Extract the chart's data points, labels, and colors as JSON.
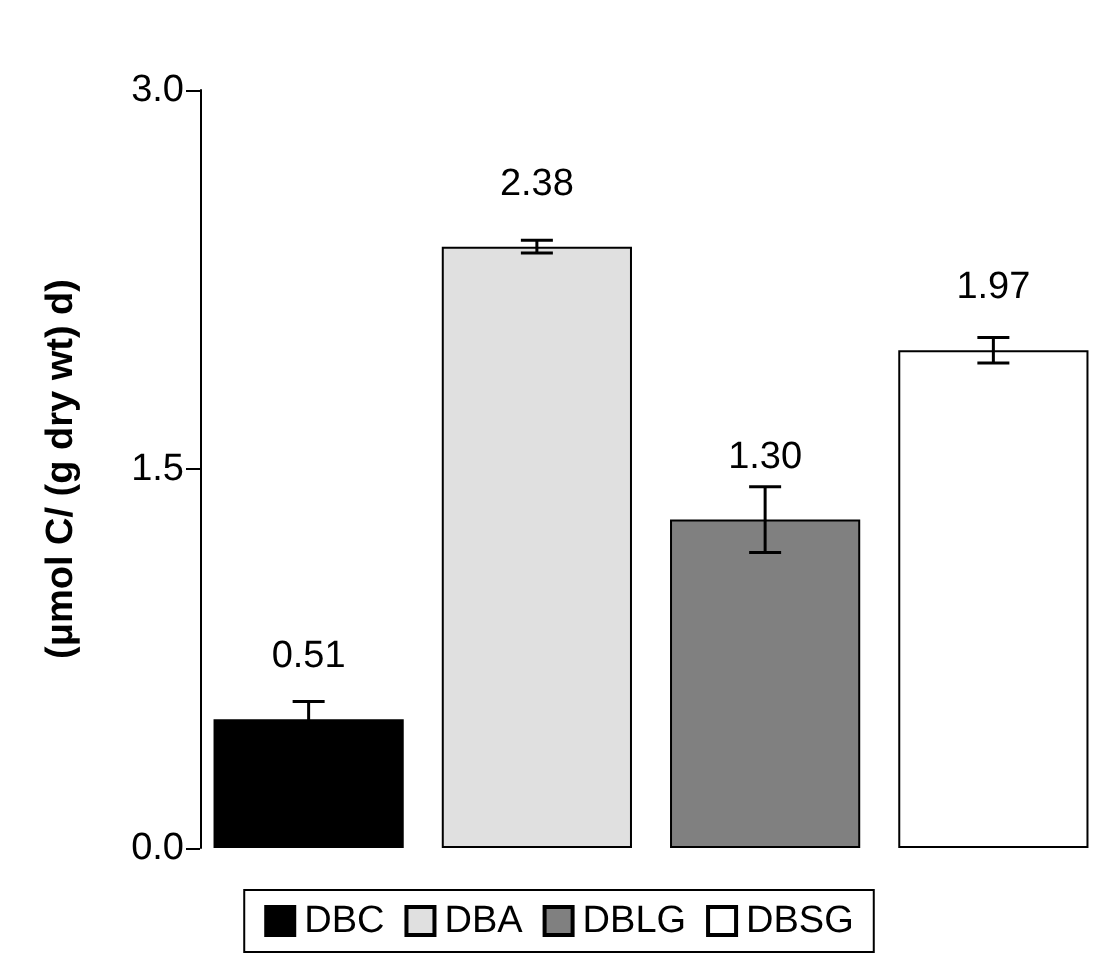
{
  "chart_data": {
    "type": "bar",
    "ylabel": "(μmol C/ (g dry wt) d)",
    "categories": [
      null
    ],
    "series": [
      {
        "name": "DBC",
        "color": "#000000",
        "values": [
          0.51
        ],
        "errors": [
          0.07
        ],
        "value_labels": [
          "0.51"
        ]
      },
      {
        "name": "DBA",
        "color": "#e0e0e0",
        "values": [
          2.38
        ],
        "errors": [
          0.025
        ],
        "value_labels": [
          "2.38"
        ]
      },
      {
        "name": "DBLG",
        "color": "#808080",
        "values": [
          1.3
        ],
        "errors": [
          0.13
        ],
        "value_labels": [
          "1.30"
        ]
      },
      {
        "name": "DBSG",
        "color": "#ffffff",
        "values": [
          1.97
        ],
        "errors": [
          0.05
        ],
        "value_labels": [
          "1.97"
        ]
      }
    ],
    "ylim": [
      0,
      3
    ],
    "yticks": [
      {
        "value": 0,
        "label": "0.0"
      },
      {
        "value": 1.5,
        "label": "1.5"
      },
      {
        "value": 3,
        "label": "3.0"
      }
    ],
    "grid": false,
    "legend": "bottom"
  }
}
